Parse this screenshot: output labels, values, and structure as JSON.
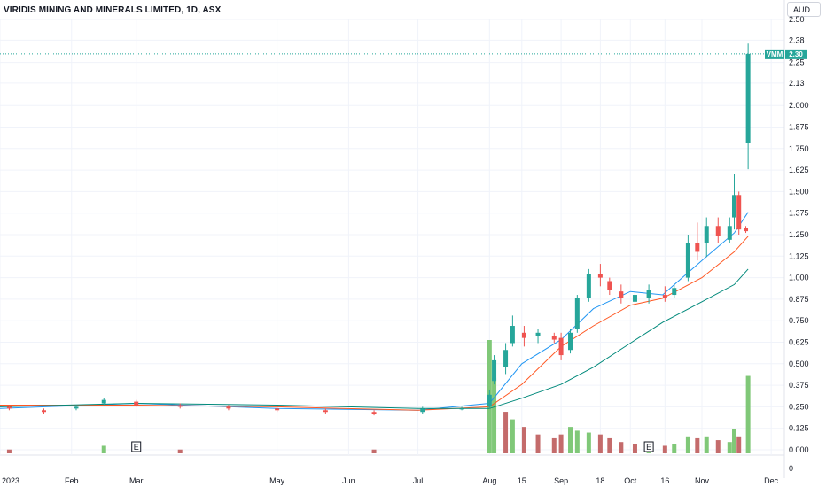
{
  "title": "VIRIDIS MINING AND MINERALS LIMITED, 1D, ASX",
  "currency": "AUD",
  "price_label": {
    "ticker": "VMM",
    "value": "2.30"
  },
  "colors": {
    "up": "#26a69a",
    "down": "#ef5350",
    "ma_fast": "#2196f3",
    "ma_mid": "#ff5722",
    "ma_slow": "#00897b",
    "vol_up": "#80c878",
    "vol_down": "#c46b6b",
    "price_line": "#26a69a"
  },
  "events": [
    {
      "label": "E",
      "date": "2023-03-01"
    },
    {
      "label": "E",
      "date": "2023-10-09"
    }
  ],
  "chart_data": {
    "type": "candlestick",
    "xlabel": "",
    "ylabel": "",
    "x_ticks": [
      "2023",
      "Feb",
      "Mar",
      "May",
      "Jun",
      "Jul",
      "Aug",
      "15",
      "Sep",
      "18",
      "Oct",
      "16",
      "Nov",
      "Dec"
    ],
    "y_ticks": [
      "2.50",
      "2.38",
      "2.25",
      "2.13",
      "2.000",
      "1.875",
      "1.750",
      "1.625",
      "1.500",
      "1.375",
      "1.250",
      "1.125",
      "1.000",
      "0.875",
      "0.750",
      "0.625",
      "0.500",
      "0.375",
      "0.250",
      "0.125",
      "0.000"
    ],
    "volume_axis_label": "0",
    "ylim": [
      0,
      2.5
    ],
    "last_price": 2.3,
    "candles": [
      {
        "d": "2023-01-05",
        "o": 0.25,
        "h": 0.26,
        "l": 0.23,
        "c": 0.24
      },
      {
        "d": "2023-01-20",
        "o": 0.23,
        "h": 0.24,
        "l": 0.21,
        "c": 0.22
      },
      {
        "d": "2023-02-03",
        "o": 0.24,
        "h": 0.26,
        "l": 0.23,
        "c": 0.25
      },
      {
        "d": "2023-02-15",
        "o": 0.27,
        "h": 0.3,
        "l": 0.26,
        "c": 0.29
      },
      {
        "d": "2023-03-01",
        "o": 0.28,
        "h": 0.29,
        "l": 0.25,
        "c": 0.26
      },
      {
        "d": "2023-03-20",
        "o": 0.26,
        "h": 0.27,
        "l": 0.24,
        "c": 0.25
      },
      {
        "d": "2023-04-10",
        "o": 0.25,
        "h": 0.26,
        "l": 0.23,
        "c": 0.24
      },
      {
        "d": "2023-05-01",
        "o": 0.24,
        "h": 0.25,
        "l": 0.22,
        "c": 0.23
      },
      {
        "d": "2023-05-22",
        "o": 0.23,
        "h": 0.24,
        "l": 0.21,
        "c": 0.22
      },
      {
        "d": "2023-06-12",
        "o": 0.22,
        "h": 0.23,
        "l": 0.2,
        "c": 0.21
      },
      {
        "d": "2023-07-03",
        "o": 0.22,
        "h": 0.25,
        "l": 0.21,
        "c": 0.24
      },
      {
        "d": "2023-07-20",
        "o": 0.24,
        "h": 0.25,
        "l": 0.23,
        "c": 0.24
      },
      {
        "d": "2023-08-01",
        "o": 0.25,
        "h": 0.35,
        "l": 0.24,
        "c": 0.32
      },
      {
        "d": "2023-08-03",
        "o": 0.4,
        "h": 0.55,
        "l": 0.38,
        "c": 0.52
      },
      {
        "d": "2023-08-08",
        "o": 0.48,
        "h": 0.62,
        "l": 0.44,
        "c": 0.58
      },
      {
        "d": "2023-08-11",
        "o": 0.62,
        "h": 0.78,
        "l": 0.6,
        "c": 0.72
      },
      {
        "d": "2023-08-16",
        "o": 0.68,
        "h": 0.72,
        "l": 0.6,
        "c": 0.65
      },
      {
        "d": "2023-08-22",
        "o": 0.66,
        "h": 0.7,
        "l": 0.62,
        "c": 0.68
      },
      {
        "d": "2023-08-29",
        "o": 0.66,
        "h": 0.68,
        "l": 0.62,
        "c": 0.64
      },
      {
        "d": "2023-09-01",
        "o": 0.65,
        "h": 0.68,
        "l": 0.52,
        "c": 0.55
      },
      {
        "d": "2023-09-05",
        "o": 0.58,
        "h": 0.7,
        "l": 0.56,
        "c": 0.68
      },
      {
        "d": "2023-09-08",
        "o": 0.7,
        "h": 0.9,
        "l": 0.68,
        "c": 0.88
      },
      {
        "d": "2023-09-13",
        "o": 0.88,
        "h": 1.05,
        "l": 0.86,
        "c": 1.02
      },
      {
        "d": "2023-09-18",
        "o": 1.02,
        "h": 1.08,
        "l": 0.95,
        "c": 1.0
      },
      {
        "d": "2023-09-22",
        "o": 0.98,
        "h": 1.0,
        "l": 0.9,
        "c": 0.93
      },
      {
        "d": "2023-09-27",
        "o": 0.92,
        "h": 0.96,
        "l": 0.85,
        "c": 0.88
      },
      {
        "d": "2023-10-03",
        "o": 0.86,
        "h": 0.92,
        "l": 0.82,
        "c": 0.9
      },
      {
        "d": "2023-10-09",
        "o": 0.88,
        "h": 0.96,
        "l": 0.85,
        "c": 0.93
      },
      {
        "d": "2023-10-16",
        "o": 0.9,
        "h": 0.95,
        "l": 0.86,
        "c": 0.88
      },
      {
        "d": "2023-10-20",
        "o": 0.9,
        "h": 0.96,
        "l": 0.88,
        "c": 0.94
      },
      {
        "d": "2023-10-26",
        "o": 1.0,
        "h": 1.25,
        "l": 0.98,
        "c": 1.2
      },
      {
        "d": "2023-10-30",
        "o": 1.2,
        "h": 1.32,
        "l": 1.1,
        "c": 1.15
      },
      {
        "d": "2023-11-03",
        "o": 1.2,
        "h": 1.35,
        "l": 1.12,
        "c": 1.3
      },
      {
        "d": "2023-11-08",
        "o": 1.3,
        "h": 1.35,
        "l": 1.2,
        "c": 1.24
      },
      {
        "d": "2023-11-13",
        "o": 1.22,
        "h": 1.35,
        "l": 1.2,
        "c": 1.3
      },
      {
        "d": "2023-11-15",
        "o": 1.35,
        "h": 1.6,
        "l": 1.28,
        "c": 1.48
      },
      {
        "d": "2023-11-17",
        "o": 1.48,
        "h": 1.5,
        "l": 1.25,
        "c": 1.28
      },
      {
        "d": "2023-11-20",
        "o": 1.29,
        "h": 1.3,
        "l": 1.26,
        "c": 1.27
      },
      {
        "d": "2023-11-21",
        "o": 1.78,
        "h": 2.36,
        "l": 1.63,
        "c": 2.3
      }
    ],
    "volume": [
      {
        "d": "2023-01-05",
        "v": 2,
        "up": false
      },
      {
        "d": "2023-02-15",
        "v": 4,
        "up": true
      },
      {
        "d": "2023-03-20",
        "v": 2,
        "up": false
      },
      {
        "d": "2023-06-12",
        "v": 2,
        "up": false
      },
      {
        "d": "2023-08-01",
        "v": 60,
        "up": true
      },
      {
        "d": "2023-08-03",
        "v": 40,
        "up": true
      },
      {
        "d": "2023-08-08",
        "v": 22,
        "up": false
      },
      {
        "d": "2023-08-11",
        "v": 18,
        "up": true
      },
      {
        "d": "2023-08-16",
        "v": 14,
        "up": false
      },
      {
        "d": "2023-08-22",
        "v": 10,
        "up": false
      },
      {
        "d": "2023-08-29",
        "v": 8,
        "up": false
      },
      {
        "d": "2023-09-01",
        "v": 10,
        "up": false
      },
      {
        "d": "2023-09-05",
        "v": 14,
        "up": true
      },
      {
        "d": "2023-09-08",
        "v": 12,
        "up": true
      },
      {
        "d": "2023-09-13",
        "v": 11,
        "up": true
      },
      {
        "d": "2023-09-18",
        "v": 10,
        "up": false
      },
      {
        "d": "2023-09-22",
        "v": 8,
        "up": false
      },
      {
        "d": "2023-09-27",
        "v": 6,
        "up": false
      },
      {
        "d": "2023-10-03",
        "v": 5,
        "up": false
      },
      {
        "d": "2023-10-09",
        "v": 4,
        "up": true
      },
      {
        "d": "2023-10-16",
        "v": 4,
        "up": false
      },
      {
        "d": "2023-10-20",
        "v": 5,
        "up": true
      },
      {
        "d": "2023-10-26",
        "v": 9,
        "up": true
      },
      {
        "d": "2023-10-30",
        "v": 8,
        "up": false
      },
      {
        "d": "2023-11-03",
        "v": 9,
        "up": true
      },
      {
        "d": "2023-11-08",
        "v": 7,
        "up": false
      },
      {
        "d": "2023-11-13",
        "v": 6,
        "up": true
      },
      {
        "d": "2023-11-15",
        "v": 13,
        "up": true
      },
      {
        "d": "2023-11-17",
        "v": 9,
        "up": false
      },
      {
        "d": "2023-11-21",
        "v": 41,
        "up": true
      }
    ],
    "moving_averages": [
      {
        "color_key": "ma_fast",
        "points": [
          [
            "2023-01-01",
            0.24
          ],
          [
            "2023-03-01",
            0.27
          ],
          [
            "2023-05-01",
            0.24
          ],
          [
            "2023-07-01",
            0.23
          ],
          [
            "2023-08-01",
            0.27
          ],
          [
            "2023-08-15",
            0.5
          ],
          [
            "2023-09-01",
            0.64
          ],
          [
            "2023-09-15",
            0.82
          ],
          [
            "2023-10-01",
            0.92
          ],
          [
            "2023-10-15",
            0.9
          ],
          [
            "2023-11-01",
            1.1
          ],
          [
            "2023-11-15",
            1.26
          ],
          [
            "2023-11-21",
            1.38
          ]
        ]
      },
      {
        "color_key": "ma_mid",
        "points": [
          [
            "2023-01-01",
            0.26
          ],
          [
            "2023-03-01",
            0.26
          ],
          [
            "2023-05-01",
            0.25
          ],
          [
            "2023-07-01",
            0.23
          ],
          [
            "2023-08-01",
            0.25
          ],
          [
            "2023-08-15",
            0.38
          ],
          [
            "2023-09-01",
            0.6
          ],
          [
            "2023-09-15",
            0.72
          ],
          [
            "2023-10-01",
            0.84
          ],
          [
            "2023-10-15",
            0.88
          ],
          [
            "2023-11-01",
            1.0
          ],
          [
            "2023-11-15",
            1.15
          ],
          [
            "2023-11-21",
            1.24
          ]
        ]
      },
      {
        "color_key": "ma_slow",
        "points": [
          [
            "2023-01-01",
            0.25
          ],
          [
            "2023-03-01",
            0.27
          ],
          [
            "2023-05-01",
            0.26
          ],
          [
            "2023-07-01",
            0.24
          ],
          [
            "2023-08-01",
            0.24
          ],
          [
            "2023-08-15",
            0.3
          ],
          [
            "2023-09-01",
            0.38
          ],
          [
            "2023-09-15",
            0.48
          ],
          [
            "2023-10-01",
            0.62
          ],
          [
            "2023-10-15",
            0.74
          ],
          [
            "2023-11-01",
            0.86
          ],
          [
            "2023-11-15",
            0.96
          ],
          [
            "2023-11-21",
            1.05
          ]
        ]
      }
    ]
  }
}
